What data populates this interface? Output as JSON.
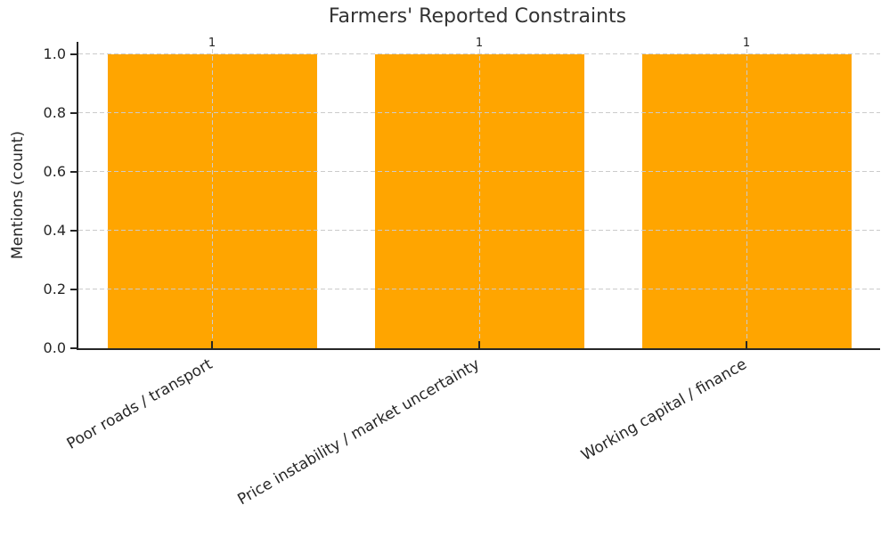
{
  "chart_data": {
    "type": "bar",
    "title": "Farmers' Reported Constraints",
    "xlabel": "",
    "ylabel": "Mentions (count)",
    "categories": [
      "Poor roads / transport",
      "Price instability / market uncertainty",
      "Working capital / finance"
    ],
    "values": [
      1,
      1,
      1
    ],
    "bar_labels": [
      "1",
      "1",
      "1"
    ],
    "yticks": [
      0.0,
      0.2,
      0.4,
      0.6,
      0.8,
      1.0
    ],
    "ytick_labels": [
      "0.0",
      "0.2",
      "0.4",
      "0.6",
      "0.8",
      "1.0"
    ],
    "ylim": [
      0,
      1.04
    ],
    "x_tick_rotation_deg": 30,
    "legend": "none",
    "grid": "dashed horizontal and vertical gridlines, drawn above bars",
    "colors": {
      "bar": "#FFA500",
      "grid": "#cbcbcb",
      "spine": "#262626",
      "tick_text": "#262626",
      "title_text": "#333333",
      "background": "#ffffff"
    }
  }
}
